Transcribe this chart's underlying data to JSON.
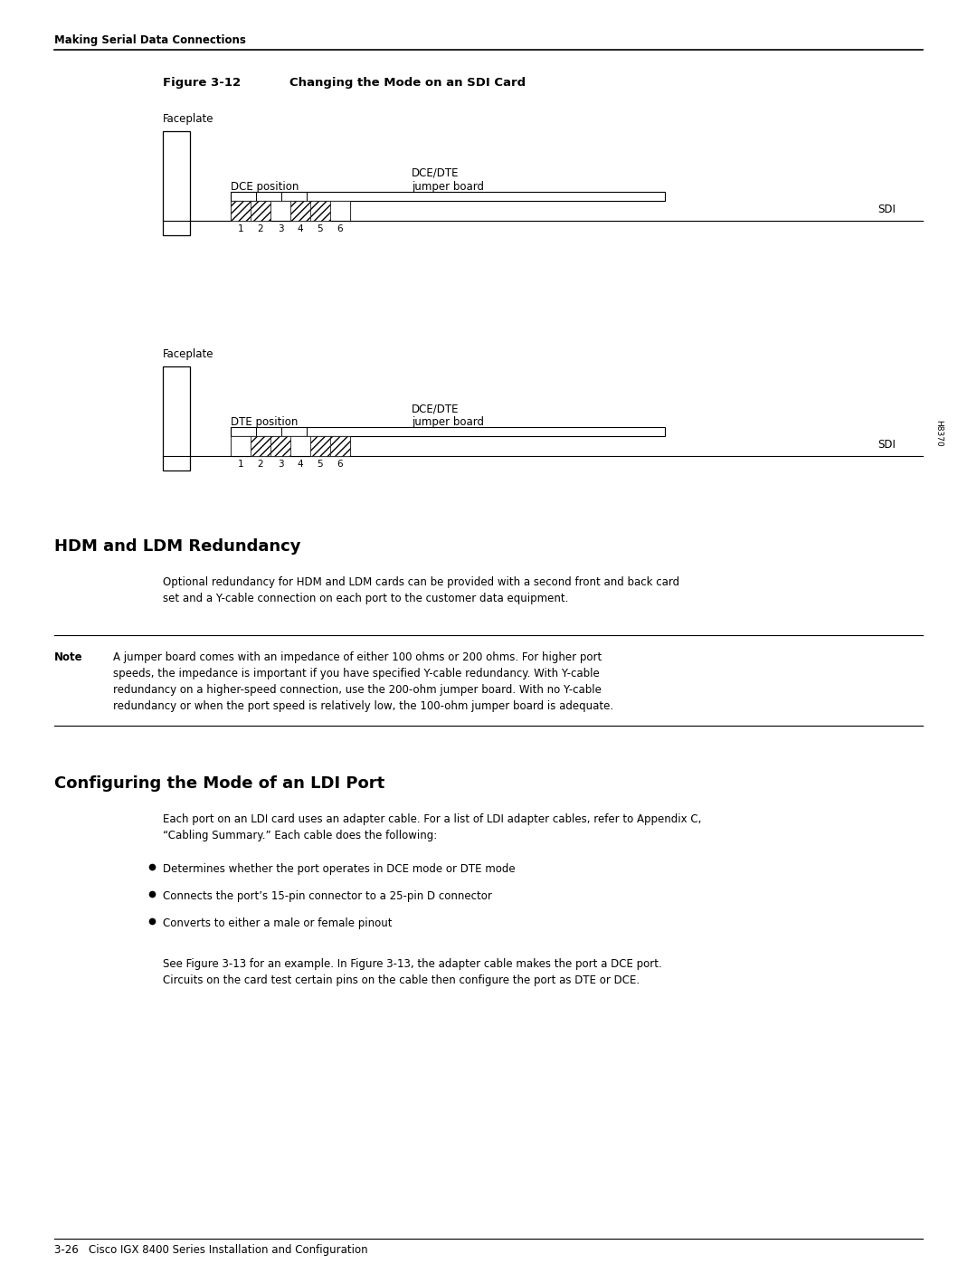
{
  "page_title": "Making Serial Data Connections",
  "figure_label": "Figure 3-12",
  "figure_title": "Changing the Mode on an SDI Card",
  "fig_width": 10.8,
  "fig_height": 13.97,
  "bg_color": "#ffffff",
  "section1_title": "HDM and LDM Redundancy",
  "section1_body": "Optional redundancy for HDM and LDM cards can be provided with a second front and back card\nset and a Y-cable connection on each port to the customer data equipment.",
  "note_label": "Note",
  "note_body": "A jumper board comes with an impedance of either 100 ohms or 200 ohms. For higher port\nspeeds, the impedance is important if you have specified Y-cable redundancy. With Y-cable\nredundancy on a higher-speed connection, use the 200-ohm jumper board. With no Y-cable\nredundancy or when the port speed is relatively low, the 100-ohm jumper board is adequate.",
  "section2_title": "Configuring the Mode of an LDI Port",
  "section2_body": "Each port on an LDI card uses an adapter cable. For a list of LDI adapter cables, refer to Appendix C,\n“Cabling Summary.” Each cable does the following:",
  "bullet1": "Determines whether the port operates in DCE mode or DTE mode",
  "bullet2": "Connects the port’s 15-pin connector to a 25-pin D connector",
  "bullet3": "Converts to either a male or female pinout",
  "section2_footer": "See Figure 3-13 for an example. In Figure 3-13, the adapter cable makes the port a DCE port.\nCircuits on the card test certain pins on the cable then configure the port as DTE or DCE.",
  "page_footer": "3-26   Cisco IGX 8400 Series Installation and Configuration",
  "h8370_label": "H8370"
}
